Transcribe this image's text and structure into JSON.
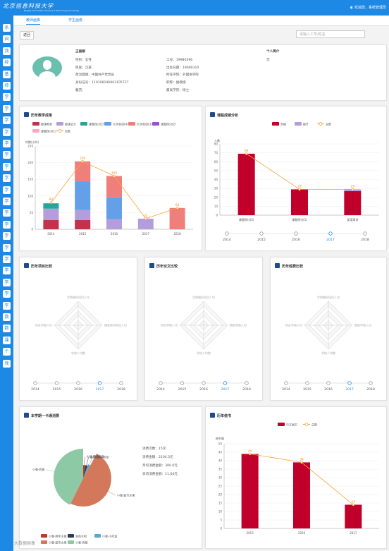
{
  "header": {
    "logo": "北京信息科技大学",
    "logo_sub": "Beijing Information Science & Technology University",
    "welcome": "欢迎您，系统管理员"
  },
  "sidebar": {
    "items": [
      "系",
      "自",
      "我",
      "经",
      "基",
      "综",
      "学",
      "学",
      "学",
      "学",
      "学",
      "学",
      "学",
      "学",
      "学",
      "学",
      "学",
      "学",
      "学",
      "学",
      "学",
      "学",
      "学",
      "学",
      "学",
      "数",
      "数",
      "课",
      "个",
      "我"
    ]
  },
  "tabs": [
    {
      "label": "教师画像"
    },
    {
      "label": "学生画像"
    }
  ],
  "toolbar": {
    "back_label": "返回",
    "search_placeholder": "请输入工号/姓名"
  },
  "profile": {
    "name": "王丽娟",
    "left": [
      "性别：女性",
      "民族：汉族",
      "政治面貌：中国共产党党员",
      "身份证号：110108196903105727",
      "籍贯："
    ],
    "right": [
      "工号：19980396",
      "出生日期：19690310",
      "所在学院：外国语学院",
      "职称：副教授",
      "最高学历：硕士"
    ],
    "intro_title": "个人简介",
    "intro_value": "无"
  },
  "teaching": {
    "title": "历年教学成果",
    "legend": [
      "跟课教室",
      "跟课总分",
      "课题探讨(2)",
      "大学英语(4)",
      "大学英语(3)",
      "课题探讨(2)",
      "课题探讨(1)",
      "总数"
    ],
    "colors": [
      "#c0334a",
      "#b39ddb",
      "#26a69a",
      "#64a0e8",
      "#ef7f7a",
      "#9c4fd0",
      "#f7a9c4",
      "#f9a23a"
    ],
    "ylabel": "时数(小时)",
    "chart_data": {
      "type": "bar",
      "categories": [
        "2014",
        "2015",
        "2016",
        "2017",
        "2018"
      ],
      "series": [
        {
          "name": "跟课教室",
          "values": [
            28,
            28,
            0,
            0,
            0
          ]
        },
        {
          "name": "跟课总分",
          "values": [
            34,
            30,
            30,
            32,
            0
          ]
        },
        {
          "name": "课题探讨(2)",
          "values": [
            16,
            0,
            0,
            0,
            0
          ]
        },
        {
          "name": "大学英语(4)",
          "values": [
            0,
            86,
            66,
            0,
            0
          ]
        },
        {
          "name": "大学英语(3)",
          "values": [
            0,
            60,
            64,
            0,
            64
          ]
        }
      ],
      "line": {
        "name": "总数",
        "values": [
          80,
          204,
          160,
          32,
          64
        ]
      },
      "ylim": [
        0,
        250
      ],
      "yticks": [
        0,
        50,
        100,
        150,
        200,
        250
      ]
    }
  },
  "grades": {
    "title": "课程成绩分析",
    "legend": [
      "合格",
      "提升",
      "总数"
    ],
    "ylabel": "人数",
    "chart_data": {
      "type": "bar",
      "categories": [
        "课题探讨(2)",
        "课题探讨(1)",
        "英语演讲"
      ],
      "series": [
        {
          "name": "合格",
          "values": [
            69,
            29,
            27
          ]
        },
        {
          "name": "提升",
          "values": [
            0,
            0,
            2
          ]
        }
      ],
      "line": {
        "name": "总数",
        "values": [
          69,
          29,
          29
        ]
      },
      "ylim": [
        0,
        80
      ],
      "yticks": [
        0,
        10,
        20,
        30,
        40,
        50,
        60,
        70,
        80
      ]
    },
    "years": [
      "2014",
      "2015",
      "2016",
      "2017",
      "2018"
    ]
  },
  "radars": [
    {
      "title": "历年项目比较",
      "labels": [
        "学院横向项目人均",
        "国家纵向项目人均",
        "学校人均数",
        "所在学院人均"
      ],
      "years": [
        "2014",
        "2015",
        "2016",
        "2017",
        "2018"
      ]
    },
    {
      "title": "历年论文比较",
      "labels": [
        "学院横向项目人均",
        "国家学院人均",
        "学校人均数",
        "所在学院人均"
      ],
      "years": [
        "2014",
        "2015",
        "2016",
        "2017",
        "2018"
      ]
    },
    {
      "title": "历年经费比较",
      "labels": [
        "学院横向项目人均",
        "国家学院人均",
        "学校人均数",
        "所在学院人均"
      ],
      "years": [
        "2014",
        "2015",
        "2016",
        "2017",
        "2018"
      ]
    }
  ],
  "card": {
    "title": "本学期一卡通消费",
    "slices": [
      {
        "label": "小餐-西餐",
        "value": 32,
        "color": "#8dc9a4"
      },
      {
        "label": "小餐-超市水果",
        "value": 37,
        "color": "#d4785b"
      },
      {
        "label": "小餐-小吃街",
        "value": 2,
        "color": "#5aa9c9"
      },
      {
        "label": "淑苑水吧",
        "value": 2,
        "color": "#2c3e50"
      },
      {
        "label": "小餐-国学主餐",
        "value": 2,
        "color": "#c0392b"
      }
    ],
    "stats": [
      "消费次数：15次",
      "消费金额：2104.5元",
      "月均消费金额：300.6元",
      "日均消费金额：11.64元"
    ],
    "legend": [
      "小餐-国学主餐",
      "淑苑水吧",
      "小餐-小吃街",
      "小餐-超市水果",
      "小餐-西餐"
    ]
  },
  "books": {
    "title": "历年借书",
    "legend": [
      "中文图书",
      "总数"
    ],
    "ylabel": "借书量",
    "chart_data": {
      "type": "bar",
      "categories": [
        "2015",
        "2016",
        "2017"
      ],
      "series": [
        {
          "name": "中文图书",
          "values": [
            44,
            39,
            14
          ]
        }
      ],
      "line": {
        "name": "总数",
        "values": [
          44,
          39,
          14
        ]
      },
      "ylim": [
        0,
        50
      ],
      "yticks": [
        0,
        5,
        10,
        15,
        20,
        25,
        30,
        35,
        40,
        45,
        50
      ]
    }
  },
  "watermark": "大数据画像"
}
